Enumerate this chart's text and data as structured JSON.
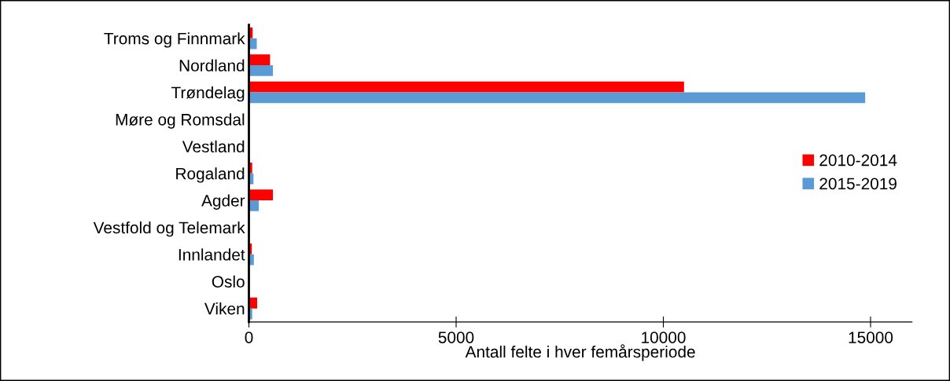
{
  "chart_data": {
    "type": "bar",
    "orientation": "horizontal",
    "xlabel": "Antall felte i hver femårsperiode",
    "categories": [
      "Troms og Finnmark",
      "Nordland",
      "Trøndelag",
      "Møre og Romsdal",
      "Vestland",
      "Rogaland",
      "Agder",
      "Vestfold og Telemark",
      "Innlandet",
      "Oslo",
      "Viken"
    ],
    "series": [
      {
        "name": "2010-2014",
        "color": "#ff0000",
        "values": [
          90,
          510,
          10500,
          0,
          null,
          80,
          580,
          null,
          70,
          0,
          200
        ]
      },
      {
        "name": "2015-2019",
        "color": "#5b9bd5",
        "values": [
          190,
          580,
          14870,
          null,
          0,
          110,
          240,
          null,
          120,
          0,
          80
        ]
      }
    ],
    "xlim": [
      0,
      16000
    ],
    "xticks": [
      0,
      5000,
      10000,
      15000
    ],
    "grid": false,
    "legend": "right"
  }
}
